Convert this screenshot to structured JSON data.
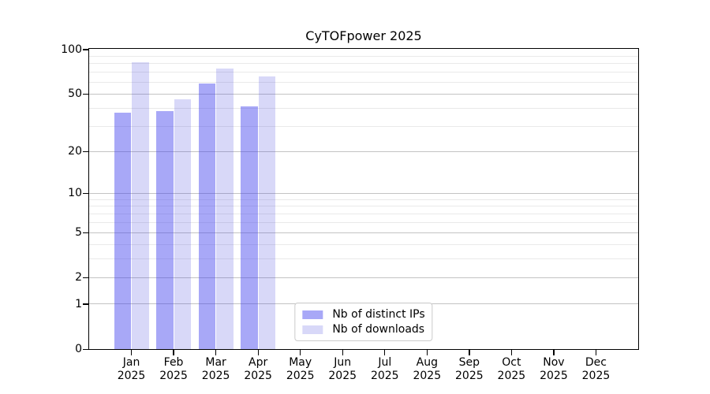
{
  "chart_data": {
    "type": "bar",
    "title": "CyTOFpower 2025",
    "categories": [
      "Jan",
      "Feb",
      "Mar",
      "Apr",
      "May",
      "Jun",
      "Jul",
      "Aug",
      "Sep",
      "Oct",
      "Nov",
      "Dec"
    ],
    "year": "2025",
    "series": [
      {
        "name": "Nb of distinct IPs",
        "color": "#a8a8f7",
        "values": [
          37,
          38,
          59,
          41,
          null,
          null,
          null,
          null,
          null,
          null,
          null,
          null
        ]
      },
      {
        "name": "Nb of downloads",
        "color": "#d8d8f8",
        "values": [
          82,
          46,
          74,
          66,
          null,
          null,
          null,
          null,
          null,
          null,
          null,
          null
        ]
      }
    ],
    "yscale": "log1p",
    "yticks": [
      0,
      1,
      2,
      5,
      10,
      20,
      50,
      100
    ],
    "minor_gridlines": [
      3,
      4,
      6,
      7,
      8,
      9,
      30,
      40,
      60,
      70,
      80,
      90
    ],
    "ylim": [
      0,
      100
    ],
    "xlabel": "",
    "ylabel": "",
    "grid": true,
    "legend_position": "lower center",
    "colors": {
      "frame": "#000000",
      "grid_major": "#c3c3c3",
      "grid_minor": "#e9e9e9",
      "background": "#ffffff",
      "legend_border": "#cccccc",
      "text": "#000000"
    }
  }
}
